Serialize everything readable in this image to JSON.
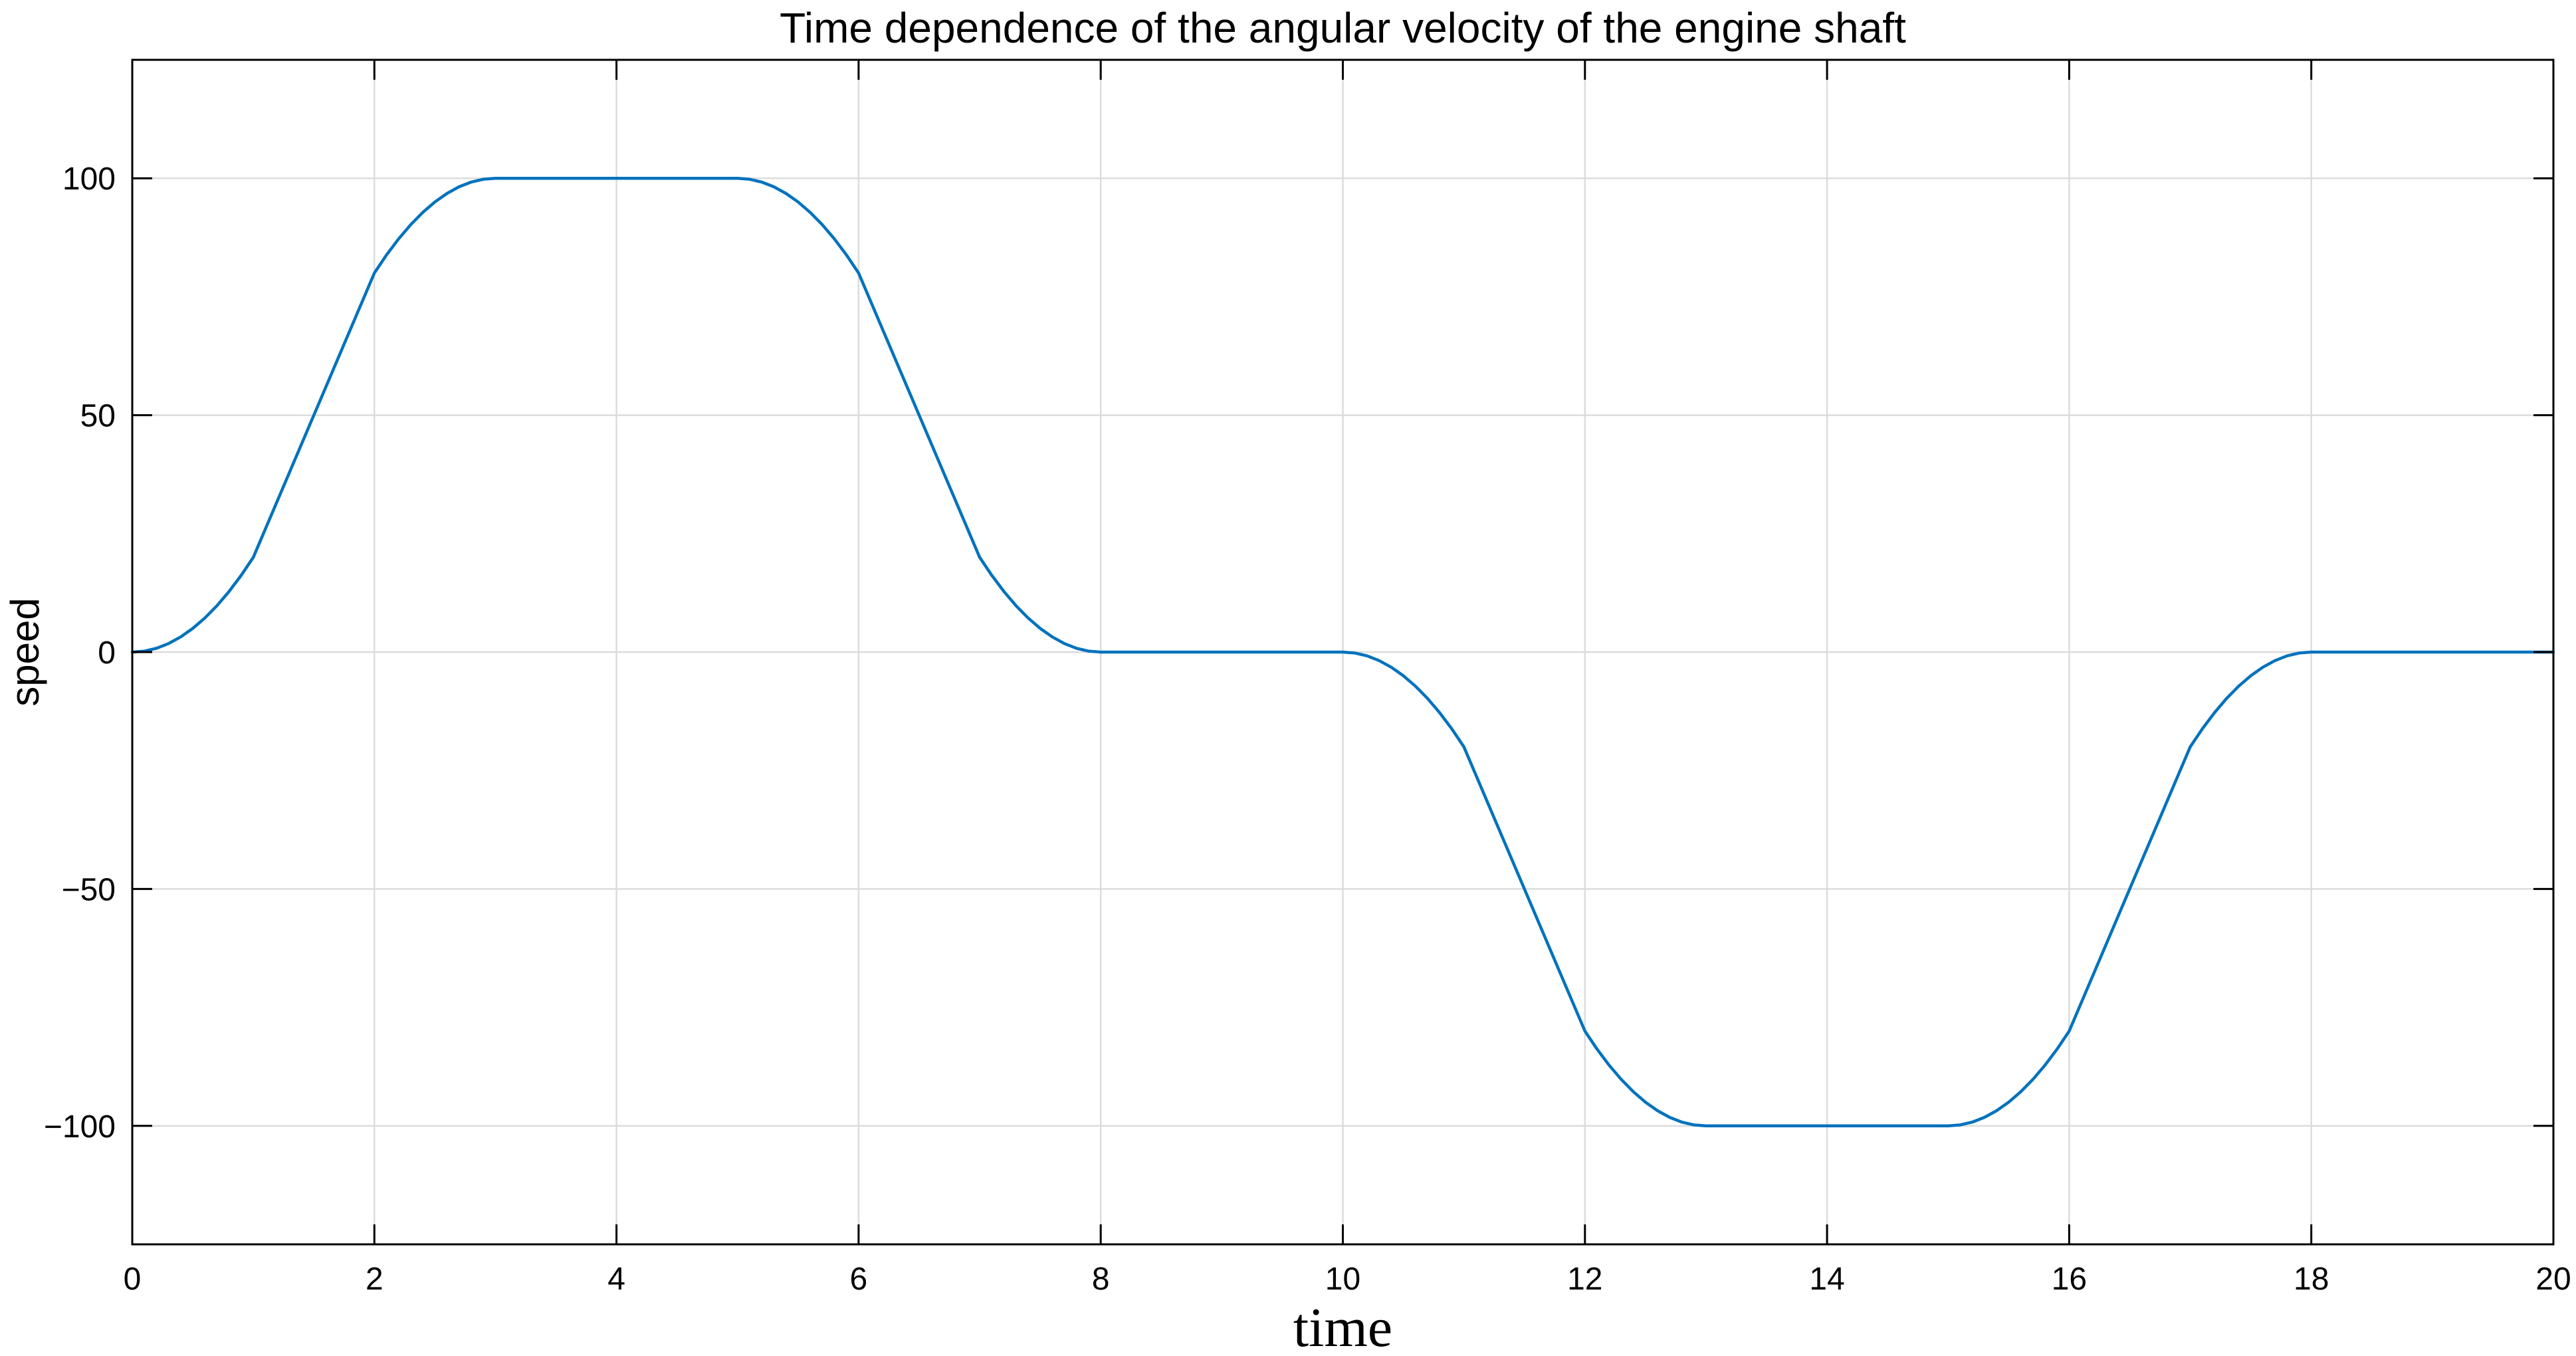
{
  "chart_data": {
    "type": "line",
    "title": "Time dependence of the angular velocity of the engine shaft",
    "xlabel": "time",
    "ylabel": "speed",
    "xlim": [
      0,
      20
    ],
    "ylim": [
      -125,
      125
    ],
    "grid": true,
    "x_ticks": [
      0,
      2,
      4,
      6,
      8,
      10,
      12,
      14,
      16,
      18,
      20
    ],
    "x_tick_labels": [
      "0",
      "2",
      "4",
      "6",
      "8",
      "10",
      "12",
      "14",
      "16",
      "18",
      "20"
    ],
    "y_ticks": [
      -100,
      -50,
      0,
      50,
      100
    ],
    "y_tick_labels": [
      "−100",
      "−50",
      "0",
      "50",
      "100"
    ],
    "series": [
      {
        "color": "#0072BD",
        "x": [
          0,
          0.1,
          0.2,
          0.3,
          0.4,
          0.5,
          0.6,
          0.7,
          0.8,
          0.9,
          1.0,
          1.25,
          1.5,
          1.75,
          2.0,
          2.1,
          2.2,
          2.3,
          2.4,
          2.5,
          2.6,
          2.7,
          2.8,
          2.9,
          3.0,
          4.0,
          5.0,
          5.1,
          5.2,
          5.3,
          5.4,
          5.5,
          5.6,
          5.7,
          5.8,
          5.9,
          6.0,
          6.25,
          6.5,
          6.75,
          7.0,
          7.1,
          7.2,
          7.3,
          7.4,
          7.5,
          7.6,
          7.7,
          7.8,
          7.9,
          8.0,
          9.0,
          10.0,
          10.1,
          10.2,
          10.3,
          10.4,
          10.5,
          10.6,
          10.7,
          10.8,
          10.9,
          11.0,
          11.25,
          11.5,
          11.75,
          12.0,
          12.1,
          12.2,
          12.3,
          12.4,
          12.5,
          12.6,
          12.7,
          12.8,
          12.9,
          13.0,
          14.0,
          15.0,
          15.1,
          15.2,
          15.3,
          15.4,
          15.5,
          15.6,
          15.7,
          15.8,
          15.9,
          16.0,
          16.25,
          16.5,
          16.75,
          17.0,
          17.1,
          17.2,
          17.3,
          17.4,
          17.5,
          17.6,
          17.7,
          17.8,
          17.9,
          18.0,
          19.0,
          20.0
        ],
        "y": [
          0,
          0.2,
          0.8,
          1.8,
          3.2,
          5.0,
          7.2,
          9.8,
          12.8,
          16.2,
          20.0,
          35.0,
          50.0,
          65.0,
          80.0,
          83.8,
          87.2,
          90.2,
          92.8,
          95.0,
          96.8,
          98.2,
          99.2,
          99.8,
          100.0,
          100.0,
          100.0,
          99.8,
          99.2,
          98.2,
          96.8,
          95.0,
          92.8,
          90.2,
          87.2,
          83.8,
          80.0,
          65.0,
          50.0,
          35.0,
          20.0,
          16.2,
          12.8,
          9.8,
          7.2,
          5.0,
          3.2,
          1.8,
          0.8,
          0.2,
          0,
          0,
          0,
          -0.2,
          -0.8,
          -1.8,
          -3.2,
          -5.0,
          -7.2,
          -9.8,
          -12.8,
          -16.2,
          -20.0,
          -35.0,
          -50.0,
          -65.0,
          -80.0,
          -83.8,
          -87.2,
          -90.2,
          -92.8,
          -95.0,
          -96.8,
          -98.2,
          -99.2,
          -99.8,
          -100.0,
          -100.0,
          -100.0,
          -99.8,
          -99.2,
          -98.2,
          -96.8,
          -95.0,
          -92.8,
          -90.2,
          -87.2,
          -83.8,
          -80.0,
          -65.0,
          -50.0,
          -35.0,
          -20.0,
          -16.2,
          -12.8,
          -9.8,
          -7.2,
          -5.0,
          -3.2,
          -1.8,
          -0.8,
          -0.2,
          0,
          0,
          0
        ]
      }
    ]
  }
}
